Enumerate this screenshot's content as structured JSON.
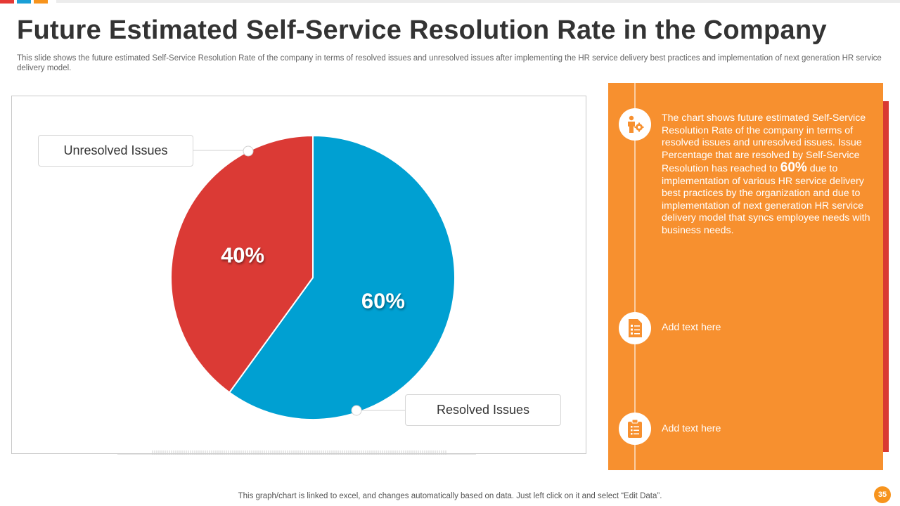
{
  "slide": {
    "title": "Future Estimated Self-Service Resolution Rate in the Company",
    "subtitle": "This slide shows the future estimated Self-Service Resolution Rate of the company in terms of resolved issues and unresolved issues after implementing the HR service delivery best practices and implementation of next generation HR service delivery model.",
    "footer": "This graph/chart is linked to excel,  and changes automatically based on data. Just left click on it and select “Edit Data”.",
    "page_number": "35",
    "colors": {
      "orange": "#f7902f",
      "red": "#d93a35",
      "blue": "#00a0d2"
    }
  },
  "chart_data": {
    "type": "pie",
    "categories": [
      "Resolved Issues",
      "Unresolved Issues"
    ],
    "values": [
      60,
      40
    ],
    "data_labels": [
      "60%",
      "40%"
    ],
    "colors": [
      "#00a0d2",
      "#db3a35"
    ],
    "title": ""
  },
  "panel": {
    "description_before": "The chart shows future estimated Self-Service Resolution Rate of the company in terms of resolved issues and unresolved issues. Issue Percentage that are resolved by Self-Service Resolution has reached to ",
    "highlight": "60%",
    "description_after": " due to implementation of various HR service delivery best practices by the organization and due to implementation of next generation HR service delivery  model that syncs employee needs with business needs.",
    "items": [
      {
        "text": "Add text here",
        "icon": "checklist-icon"
      },
      {
        "text": "Add text here",
        "icon": "clipboard-icon"
      }
    ],
    "top_icon": "person-gear-icon"
  }
}
